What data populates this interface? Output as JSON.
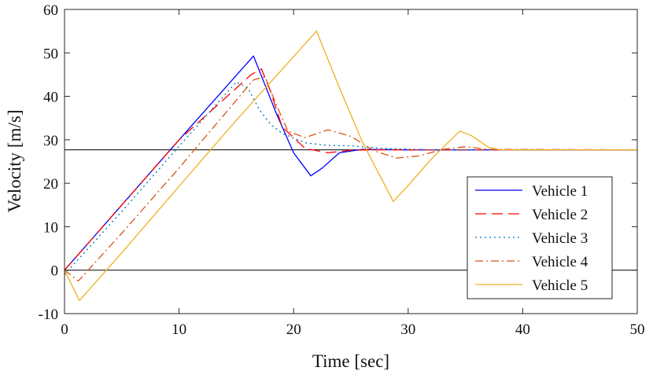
{
  "chart_data": {
    "type": "line",
    "xlabel": "Time [sec]",
    "ylabel": "Velocity [m/s]",
    "xlim": [
      0,
      50
    ],
    "ylim": [
      -10,
      60
    ],
    "xticks": [
      0,
      10,
      20,
      30,
      40,
      50
    ],
    "yticks": [
      -10,
      0,
      10,
      20,
      30,
      40,
      50,
      60
    ],
    "grid": false,
    "legend_position": "bottom-right",
    "reference_lines": [
      {
        "y": 27.7,
        "color": "#000000"
      },
      {
        "y": 0,
        "color": "#000000"
      }
    ],
    "series": [
      {
        "name": "Vehicle 1",
        "color": "#0000ff",
        "dash": "solid",
        "x": [
          0,
          5,
          10,
          16.5,
          18.5,
          20,
          21.5,
          22.5,
          24,
          26,
          30,
          35,
          40,
          50
        ],
        "y": [
          0,
          15,
          30,
          49.3,
          36,
          27,
          21.7,
          23.5,
          27,
          27.8,
          27.7,
          27.7,
          27.7,
          27.7
        ]
      },
      {
        "name": "Vehicle 2",
        "color": "#ff0000",
        "dash": "dashed",
        "x": [
          0,
          5,
          10,
          16.3,
          17.2,
          18,
          19,
          21,
          23,
          25,
          27,
          30,
          35,
          50
        ],
        "y": [
          0,
          15,
          30,
          45,
          46.3,
          41,
          33,
          28,
          27,
          27.6,
          27.7,
          27.7,
          27.7,
          27.7
        ]
      },
      {
        "name": "Vehicle 3",
        "color": "#0072bd",
        "dash": "dotted",
        "x": [
          0,
          5,
          10,
          15,
          16,
          17,
          18,
          19,
          21,
          23,
          25,
          28,
          32,
          50
        ],
        "y": [
          -1,
          13.5,
          28.5,
          43.3,
          42,
          37,
          33.5,
          31.5,
          29.3,
          28.7,
          28.6,
          28,
          27.7,
          27.7
        ]
      },
      {
        "name": "Vehicle 4",
        "color": "#d95319",
        "dash": "dashdot",
        "x": [
          0,
          1.2,
          5,
          10,
          16.5,
          17.5,
          18.5,
          19.5,
          21,
          23,
          25,
          27,
          29,
          31,
          33,
          35,
          37,
          50
        ],
        "y": [
          0,
          -2.5,
          8.5,
          23.5,
          43.8,
          44.5,
          38,
          32,
          30.5,
          32.3,
          30.8,
          27.5,
          25.8,
          26.3,
          27.8,
          28.4,
          27.8,
          27.7
        ]
      },
      {
        "name": "Vehicle 5",
        "color": "#edb120",
        "dash": "solid",
        "x": [
          0,
          1.3,
          5,
          10,
          15,
          22,
          24,
          26,
          28.7,
          30,
          32,
          34.5,
          35.5,
          37,
          38,
          50
        ],
        "y": [
          0,
          -7,
          4,
          19.3,
          34.5,
          55,
          42,
          29.5,
          15.8,
          19.5,
          25.5,
          32,
          31,
          28.3,
          27.7,
          27.7
        ]
      }
    ]
  }
}
